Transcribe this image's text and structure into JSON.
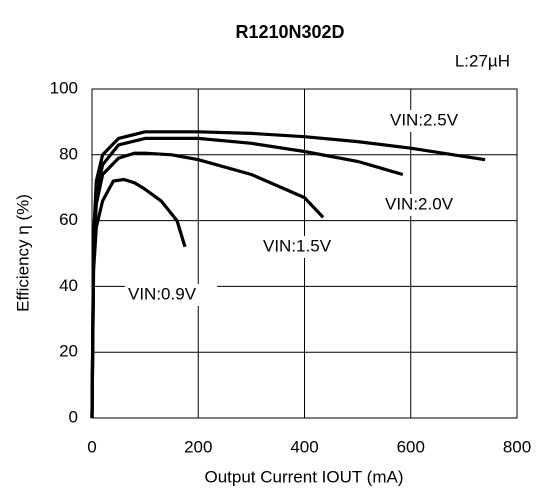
{
  "chart_data": {
    "type": "line",
    "title": "R1210N302D",
    "subtitle": "L:27µH",
    "xlabel": "Output Current IOUT (mA)",
    "ylabel": "Efficiency η (%)",
    "xlim": [
      0,
      800
    ],
    "xticks": [
      0,
      200,
      400,
      600,
      800
    ],
    "ylim": [
      0,
      100
    ],
    "yticks": [
      0,
      20,
      40,
      60,
      80,
      100
    ],
    "grid": true,
    "series": [
      {
        "name": "VIN:2.5V",
        "color": "#000000",
        "x": [
          0,
          3,
          8,
          20,
          50,
          100,
          200,
          300,
          400,
          500,
          600,
          700,
          740
        ],
        "values": [
          0,
          55,
          72,
          80,
          85,
          87,
          87,
          86.5,
          85.5,
          84,
          82,
          79.5,
          78.5
        ]
      },
      {
        "name": "VIN:2.0V",
        "color": "#000000",
        "x": [
          0,
          3,
          8,
          20,
          50,
          100,
          200,
          300,
          400,
          500,
          585
        ],
        "values": [
          0,
          52,
          68,
          77,
          83,
          85,
          85,
          83.5,
          81,
          78,
          74
        ]
      },
      {
        "name": "VIN:1.5V",
        "color": "#000000",
        "x": [
          0,
          3,
          8,
          20,
          50,
          80,
          100,
          150,
          200,
          300,
          400,
          435
        ],
        "values": [
          0,
          50,
          65,
          74,
          79,
          80.5,
          80.5,
          80,
          78.5,
          74,
          67,
          61
        ]
      },
      {
        "name": "VIN:0.9V",
        "color": "#000000",
        "x": [
          0,
          3,
          8,
          20,
          40,
          60,
          80,
          100,
          130,
          160,
          175
        ],
        "values": [
          0,
          45,
          58,
          66,
          72,
          72.5,
          71.5,
          69.5,
          66,
          60,
          52
        ]
      }
    ]
  }
}
